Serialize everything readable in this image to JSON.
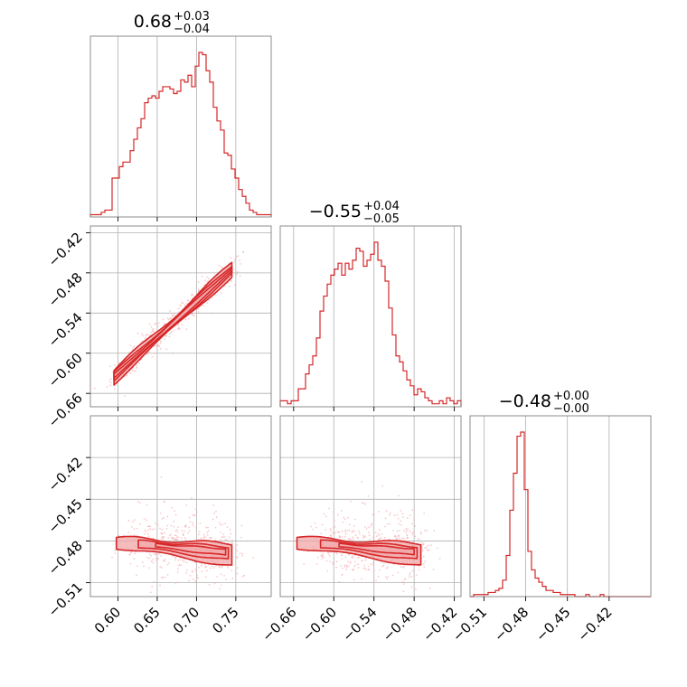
{
  "chart_data": {
    "type": "corner",
    "color": "#d62728",
    "fill_color": "#f2a5a7",
    "grid": true,
    "parameters": [
      {
        "range": [
          0.565,
          0.795
        ],
        "ticks": [
          0.6,
          0.65,
          0.7,
          0.75
        ],
        "tick_labels": [
          "0.60",
          "0.65",
          "0.70",
          "0.75"
        ]
      },
      {
        "range": [
          -0.68,
          -0.41
        ],
        "ticks": [
          -0.66,
          -0.6,
          -0.54,
          -0.48,
          -0.42
        ],
        "tick_labels": [
          "−0.66",
          "−0.60",
          "−0.54",
          "−0.48",
          "−0.42"
        ]
      },
      {
        "range": [
          -0.52,
          -0.39
        ],
        "ticks": [
          -0.51,
          -0.48,
          -0.45,
          -0.42
        ],
        "tick_labels": [
          "−0.51",
          "−0.48",
          "−0.45",
          "−0.42"
        ]
      }
    ],
    "titles": [
      {
        "main": "0.68",
        "upper": "+0.03",
        "lower": "−0.04"
      },
      {
        "main": "−0.55",
        "upper": "+0.04",
        "lower": "−0.05"
      },
      {
        "main": "−0.48",
        "upper": "+0.00",
        "lower": "−0.00"
      }
    ],
    "histograms": [
      {
        "edges_start": 0.565,
        "bin_width": 0.0046,
        "counts": [
          1,
          1,
          1,
          2,
          3,
          3,
          17,
          17,
          22,
          24,
          24,
          29,
          34,
          39,
          43,
          50,
          52,
          53,
          52,
          55,
          57,
          57,
          56,
          54,
          55,
          60,
          59,
          62,
          57,
          66,
          72,
          71,
          64,
          59,
          48,
          42,
          38,
          28,
          27,
          21,
          17,
          12,
          9,
          6,
          3,
          2,
          1,
          1,
          1,
          1
        ]
      },
      {
        "edges_start": -0.68,
        "bin_width": 0.0054,
        "counts": [
          2,
          2,
          1,
          2,
          2,
          6,
          6,
          11,
          14,
          17,
          23,
          32,
          37,
          41,
          44,
          46,
          48,
          44,
          48,
          46,
          49,
          53,
          52,
          47,
          49,
          51,
          55,
          49,
          47,
          42,
          33,
          24,
          17,
          15,
          12,
          9,
          7,
          4,
          6,
          5,
          3,
          2,
          1,
          1,
          2,
          1,
          3,
          2,
          1,
          2
        ]
      },
      {
        "edges_start": -0.52,
        "bin_width": 0.0026,
        "counts": [
          0,
          1,
          1,
          1,
          1,
          2,
          2,
          3,
          4,
          8,
          20,
          42,
          60,
          78,
          80,
          52,
          22,
          13,
          9,
          7,
          5,
          3,
          3,
          2,
          2,
          1,
          1,
          1,
          1,
          0,
          0,
          0,
          1,
          0,
          0,
          0,
          1,
          0,
          0,
          0,
          0,
          0,
          0,
          0,
          0,
          0,
          0,
          0,
          0,
          0
        ]
      }
    ],
    "joint_densities": [
      {
        "pair": [
          0,
          1
        ],
        "trend": "linear",
        "x_span": [
          0.595,
          0.745
        ],
        "y_span": [
          -0.635,
          -0.475
        ],
        "width": 0.009
      },
      {
        "pair": [
          0,
          2
        ],
        "trend": "flat",
        "x_span": [
          0.598,
          0.745
        ],
        "y_level": -0.481,
        "y_slope": -0.045,
        "height": 0.0045
      },
      {
        "pair": [
          1,
          2
        ],
        "trend": "flat",
        "x_span": [
          -0.655,
          -0.47
        ],
        "y_level": -0.481,
        "y_slope": -0.035,
        "height": 0.0045
      }
    ]
  }
}
